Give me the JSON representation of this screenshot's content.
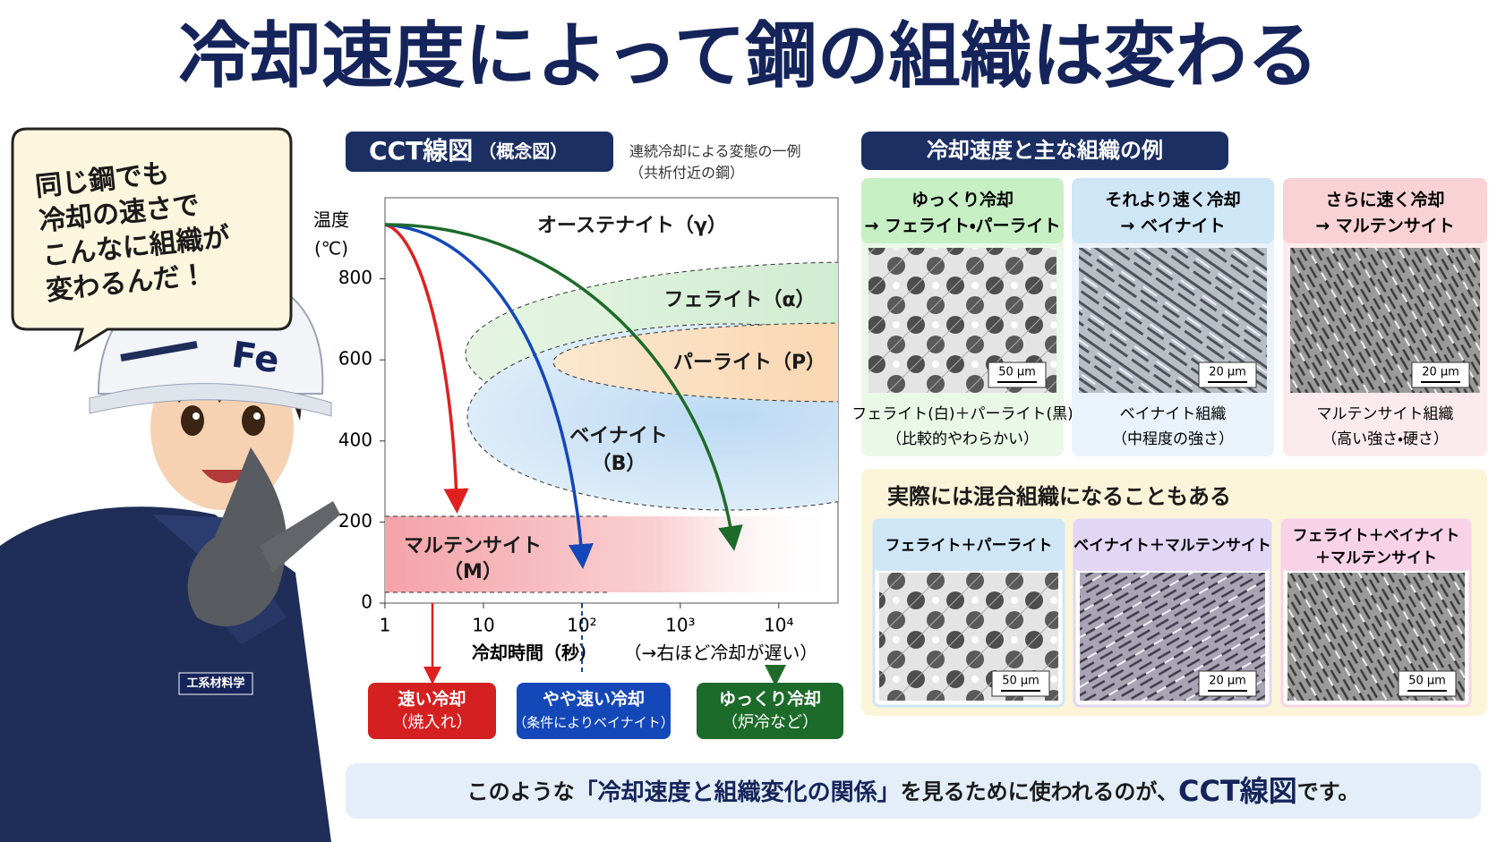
{
  "title": "冷却速度によって鋼の組織は変わる",
  "speech_bubble": [
    "同じ鋼でも",
    "冷却の速さで",
    "こんなに組織が",
    "変わるんだ！"
  ],
  "character": {
    "helmet": "Fe",
    "badge": "工系材料学"
  },
  "cct": {
    "heading": "CCT線図",
    "subheading": "（概念図）",
    "note": [
      "連続冷却による変態の一例",
      "（共析付近の鋼）"
    ],
    "y_label": [
      "温度",
      "(℃)"
    ],
    "ylim": [
      0,
      1000
    ],
    "yticks": [
      0,
      200,
      400,
      600,
      800
    ],
    "xscale": "log",
    "xlim": [
      1,
      40000
    ],
    "xticks": [
      1,
      10,
      {
        "value": 100,
        "label": "10²"
      },
      {
        "value": 1000,
        "label": "10³"
      },
      {
        "value": 10000,
        "label": "10⁴"
      }
    ],
    "x_label": "冷却時間（秒）",
    "x_note": "（→右ほど冷却が遅い）",
    "regions": {
      "austenite": "オーステナイト（γ）",
      "ferrite": "フェライト（α）",
      "pearlite": "パーライト（P）",
      "bainite": [
        "ベイナイト",
        "（B）"
      ],
      "martensite": [
        "マルテンサイト",
        "（M）"
      ]
    },
    "cooling": [
      {
        "title": "速い冷却",
        "note": "（焼入れ）"
      },
      {
        "title": "やや速い冷却",
        "note": "（条件によりベイナイト）"
      },
      {
        "title": "ゆっくり冷却",
        "note": "（炉冷など）"
      }
    ]
  },
  "examples": {
    "heading": "冷却速度と主な組織の例",
    "cards": [
      {
        "title": [
          "ゆっくり冷却",
          "→ フェライト・パーライト"
        ],
        "scale": "50 μm",
        "caption": [
          "フェライト(白)＋パーライト(黒)",
          "（比較的やわらかい）"
        ]
      },
      {
        "title": [
          "それより速く冷却",
          "→ ベイナイト"
        ],
        "scale": "20 μm",
        "caption": [
          "ベイナイト組織",
          "（中程度の強さ）"
        ]
      },
      {
        "title": [
          "さらに速く冷却",
          "→ マルテンサイト"
        ],
        "scale": "20 μm",
        "caption": [
          "マルテンサイト組織",
          "（高い強さ・硬さ）"
        ]
      }
    ]
  },
  "mixed": {
    "heading": "実際には混合組織になることもある",
    "cards": [
      {
        "title": [
          "フェライト＋パーライト"
        ],
        "scale": "50 μm"
      },
      {
        "title": [
          "ベイナイト＋マルテンサイト"
        ],
        "scale": "20 μm"
      },
      {
        "title": [
          "フェライト＋ベイナイト",
          "＋マルテンサイト"
        ],
        "scale": "50 μm"
      }
    ]
  },
  "footer": [
    "このような",
    "「冷却速度と組織変化の関係」",
    "を見るために使われるのが、",
    "CCT線図",
    "です。"
  ]
}
